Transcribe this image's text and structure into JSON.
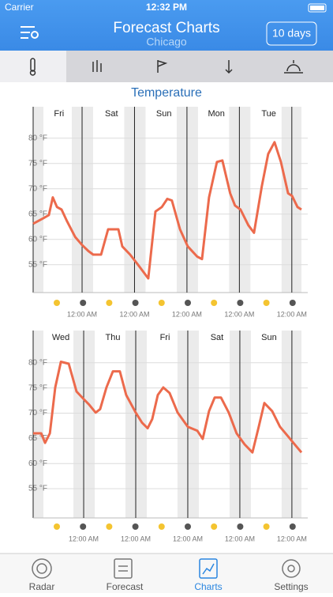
{
  "status_bar": {
    "carrier": "Carrier",
    "time": "12:32 PM"
  },
  "nav": {
    "title": "Forecast Charts",
    "subtitle": "Chicago",
    "button": "10 days"
  },
  "section_title": "Temperature",
  "chart_data": [
    {
      "type": "line",
      "color": "#ec6a4c",
      "days": [
        "Fri",
        "Sat",
        "Sun",
        "Mon",
        "Tue"
      ],
      "x": [
        1.6,
        6.3,
        8.8,
        10.6,
        12.5,
        14.6,
        17.1,
        20.8,
        24.0,
        26.9,
        29.1,
        32.7,
        35.9,
        40.6,
        42.4,
        46.0,
        49.6,
        54.3,
        57.6,
        60.5,
        63.0,
        65.1,
        68.8,
        72.4,
        76.7,
        78.9,
        82.1,
        85.7,
        88.2,
        91.8,
        94.0,
        96.5,
        100.1,
        102.7,
        106.3,
        109.2,
        112.1,
        115.0,
        118.3,
        120.1,
        122.6,
        124.4
      ],
      "values": [
        63.1,
        64.2,
        64.8,
        68.3,
        66.4,
        65.9,
        63.6,
        60.5,
        58.9,
        57.7,
        57.0,
        57.0,
        62.0,
        62.0,
        58.6,
        57.0,
        55.0,
        52.3,
        65.5,
        66.4,
        68.0,
        67.7,
        62.0,
        58.6,
        56.6,
        56.1,
        68.3,
        75.3,
        75.6,
        69.1,
        66.7,
        65.9,
        62.8,
        61.3,
        70.6,
        76.9,
        79.2,
        75.3,
        69.1,
        68.6,
        66.4,
        65.9
      ],
      "xlim": [
        1.6,
        124.4
      ],
      "xticks": [
        {
          "value": 24,
          "label": "12:00 AM"
        },
        {
          "value": 48,
          "label": "12:00 AM"
        },
        {
          "value": 72,
          "label": "12:00 AM"
        },
        {
          "value": 96,
          "label": "12:00 AM"
        },
        {
          "value": 120,
          "label": "12:00 AM"
        }
      ],
      "ylim": [
        49.5,
        86.2
      ],
      "yticks": [
        {
          "value": 55,
          "label": "55 °F"
        },
        {
          "value": 60,
          "label": "60 °F"
        },
        {
          "value": 65,
          "label": "65 °F"
        },
        {
          "value": 70,
          "label": "70 °F"
        },
        {
          "value": 75,
          "label": "75 °F"
        },
        {
          "value": 80,
          "label": "80 °F"
        }
      ],
      "grid": true
    },
    {
      "type": "line",
      "color": "#ec6a4c",
      "days": [
        "Wed",
        "Thu",
        "Fri",
        "Sat",
        "Sun"
      ],
      "x": [
        0.7,
        4.4,
        6.2,
        8.4,
        10.9,
        13.5,
        17.1,
        20.7,
        24.0,
        26.5,
        29.5,
        31.6,
        34.5,
        37.5,
        40.7,
        43.6,
        48.0,
        50.9,
        53.5,
        55.6,
        58.2,
        60.7,
        63.6,
        67.3,
        72.0,
        76.4,
        78.9,
        81.8,
        84.4,
        87.3,
        90.9,
        94.5,
        98.2,
        101.8,
        104.7,
        107.3,
        110.9,
        114.5,
        118.2,
        120.7,
        124.4
      ],
      "values": [
        66.0,
        66.0,
        64.1,
        66.0,
        75.1,
        80.2,
        79.8,
        74.3,
        72.8,
        71.7,
        70.1,
        70.8,
        75.1,
        78.3,
        78.3,
        73.6,
        70.1,
        68.1,
        67.0,
        68.8,
        73.6,
        75.1,
        74.0,
        70.1,
        67.3,
        66.5,
        64.9,
        70.4,
        73.1,
        73.1,
        70.1,
        66.0,
        63.8,
        62.2,
        67.3,
        72.0,
        70.4,
        67.3,
        65.4,
        64.1,
        62.2
      ],
      "xlim": [
        0.7,
        124.4
      ],
      "xticks": [
        {
          "value": 24,
          "label": "12:00 AM"
        },
        {
          "value": 48,
          "label": "12:00 AM"
        },
        {
          "value": 72,
          "label": "12:00 AM"
        },
        {
          "value": 96,
          "label": "12:00 AM"
        },
        {
          "value": 120,
          "label": "12:00 AM"
        }
      ],
      "ylim": [
        49.2,
        86.4
      ],
      "yticks": [
        {
          "value": 55,
          "label": "55 °F"
        },
        {
          "value": 60,
          "label": "60 °F"
        },
        {
          "value": 65,
          "label": "65 °F"
        },
        {
          "value": 70,
          "label": "70 °F"
        },
        {
          "value": 75,
          "label": "75 °F"
        },
        {
          "value": 80,
          "label": "80 °F"
        }
      ],
      "grid": true
    }
  ],
  "tab_bar": [
    "Radar",
    "Forecast",
    "Charts",
    "Settings"
  ]
}
